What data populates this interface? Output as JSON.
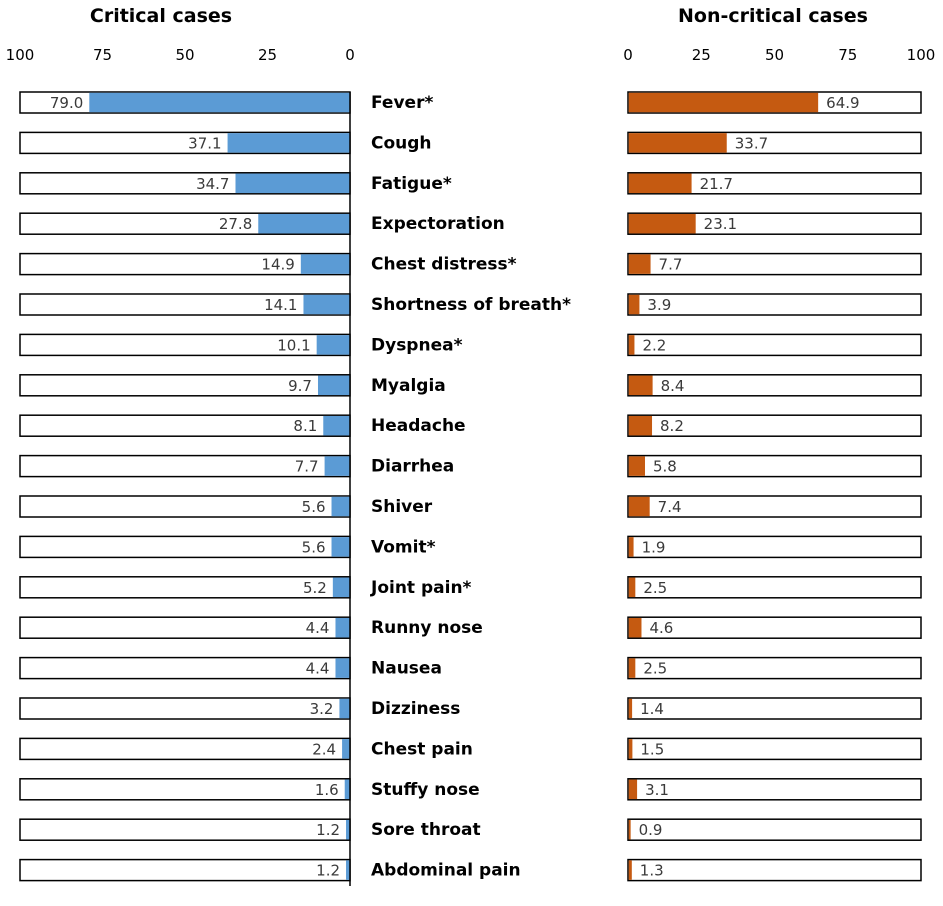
{
  "chart_data": {
    "type": "bar",
    "orientation": "horizontal",
    "categories": [
      "Fever*",
      "Cough",
      "Fatigue*",
      "Expectoration",
      "Chest distress*",
      "Shortness of breath*",
      "Dyspnea*",
      "Myalgia",
      "Headache",
      "Diarrhea",
      "Shiver",
      "Vomit*",
      "Joint pain*",
      "Runny nose",
      "Nausea",
      "Dizziness",
      "Chest pain",
      "Stuffy nose",
      "Sore throat",
      "Abdominal pain"
    ],
    "panels": [
      {
        "name": "critical",
        "title": "Critical cases",
        "direction": "reversed",
        "xlim": [
          0,
          100
        ],
        "ticks": [
          100,
          75,
          50,
          25,
          0
        ],
        "tick_labels": [
          "100",
          "75",
          "50",
          "25",
          "0"
        ],
        "color": "#5b9bd5",
        "values": [
          79.0,
          37.1,
          34.7,
          27.8,
          14.9,
          14.1,
          10.1,
          9.7,
          8.1,
          7.7,
          5.6,
          5.6,
          5.2,
          4.4,
          4.4,
          3.2,
          2.4,
          1.6,
          1.2,
          1.2
        ],
        "value_labels": [
          "79.0",
          "37.1",
          "34.7",
          "27.8",
          "14.9",
          "14.1",
          "10.1",
          "9.7",
          "8.1",
          "7.7",
          "5.6",
          "5.6",
          "5.2",
          "4.4",
          "4.4",
          "3.2",
          "2.4",
          "1.6",
          "1.2",
          "1.2"
        ]
      },
      {
        "name": "non-critical",
        "title": "Non-critical cases",
        "direction": "normal",
        "xlim": [
          0,
          100
        ],
        "ticks": [
          0,
          25,
          50,
          75,
          100
        ],
        "tick_labels": [
          "0",
          "25",
          "50",
          "75",
          "100"
        ],
        "color": "#c55a11",
        "values": [
          64.9,
          33.7,
          21.7,
          23.1,
          7.7,
          3.9,
          2.2,
          8.4,
          8.2,
          5.8,
          7.4,
          1.9,
          2.5,
          4.6,
          2.5,
          1.4,
          1.5,
          3.1,
          0.9,
          1.3
        ],
        "value_labels": [
          "64.9",
          "33.7",
          "21.7",
          "23.1",
          "7.7",
          "3.9",
          "2.2",
          "8.4",
          "8.2",
          "5.8",
          "7.4",
          "1.9",
          "2.5",
          "4.6",
          "2.5",
          "1.4",
          "1.5",
          "3.1",
          "0.9",
          "1.3"
        ]
      }
    ]
  }
}
